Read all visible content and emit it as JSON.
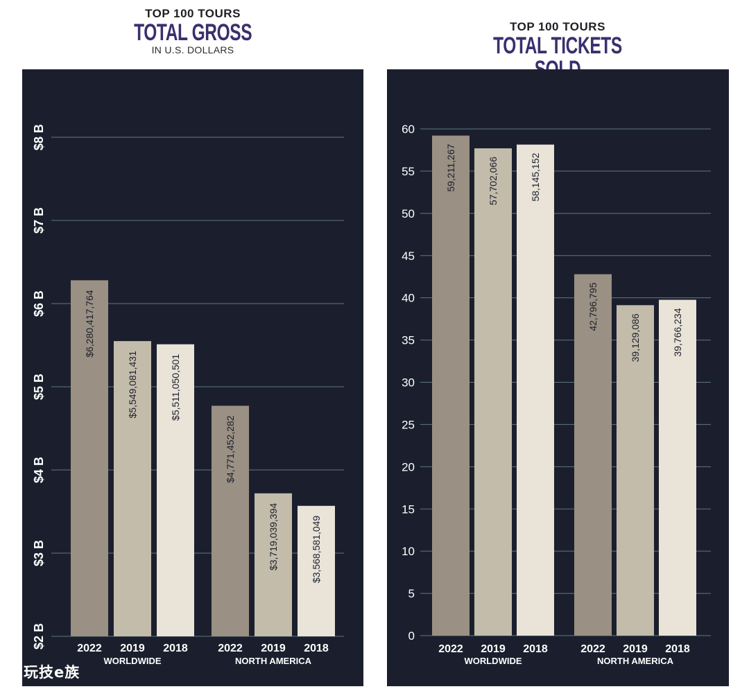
{
  "watermark": "玩技e族",
  "chart_data": [
    {
      "type": "bar",
      "kicker": "TOP 100 TOURS",
      "title": "TOTAL GROSS",
      "subtitle": "IN U.S. DOLLARS",
      "groups": [
        {
          "label": "WORLDWIDE",
          "bars": [
            {
              "year": "2022",
              "value": 6280417764,
              "label": "$6,280,417,764"
            },
            {
              "year": "2019",
              "value": 5549081431,
              "label": "$5,549,081,431"
            },
            {
              "year": "2018",
              "value": 5511050501,
              "label": "$5,511,050,501"
            }
          ]
        },
        {
          "label": "NORTH AMERICA",
          "bars": [
            {
              "year": "2022",
              "value": 4771452282,
              "label": "$4,771,452,282"
            },
            {
              "year": "2019",
              "value": 3719039394,
              "label": "$3,719,039,394"
            },
            {
              "year": "2018",
              "value": 3568581049,
              "label": "$3,568,581,049"
            }
          ]
        }
      ],
      "ylim": [
        2000000000,
        8000000000
      ],
      "y_ticks": [
        {
          "value": 2000000000,
          "label": "$2 B"
        },
        {
          "value": 3000000000,
          "label": "$3 B"
        },
        {
          "value": 4000000000,
          "label": "$4 B"
        },
        {
          "value": 5000000000,
          "label": "$5 B"
        },
        {
          "value": 6000000000,
          "label": "$6 B"
        },
        {
          "value": 7000000000,
          "label": "$7 B"
        },
        {
          "value": 8000000000,
          "label": "$8 B"
        }
      ],
      "grid": true,
      "colors": {
        "2022": "#9a9083",
        "2019": "#c3bcab",
        "2018": "#e9e3d8"
      }
    },
    {
      "type": "bar",
      "kicker": "TOP 100 TOURS",
      "title": "TOTAL TICKETS SOLD",
      "groups": [
        {
          "label": "WORLDWIDE",
          "bars": [
            {
              "year": "2022",
              "value": 59211267,
              "label": "59,211,267"
            },
            {
              "year": "2019",
              "value": 57702066,
              "label": "57,702,066"
            },
            {
              "year": "2018",
              "value": 58145152,
              "label": "58,145,152"
            }
          ]
        },
        {
          "label": "NORTH AMERICA",
          "bars": [
            {
              "year": "2022",
              "value": 42796795,
              "label": "42,796,795"
            },
            {
              "year": "2019",
              "value": 39129086,
              "label": "39,129,086"
            },
            {
              "year": "2018",
              "value": 39766234,
              "label": "39,766,234"
            }
          ]
        }
      ],
      "ylim": [
        0,
        60000000
      ],
      "y_ticks": [
        {
          "value": 0,
          "label": "0"
        },
        {
          "value": 5000000,
          "label": "5"
        },
        {
          "value": 10000000,
          "label": "10"
        },
        {
          "value": 15000000,
          "label": "15"
        },
        {
          "value": 20000000,
          "label": "20"
        },
        {
          "value": 25000000,
          "label": "25"
        },
        {
          "value": 30000000,
          "label": "30"
        },
        {
          "value": 35000000,
          "label": "35"
        },
        {
          "value": 40000000,
          "label": "40"
        },
        {
          "value": 45000000,
          "label": "45"
        },
        {
          "value": 50000000,
          "label": "50"
        },
        {
          "value": 55000000,
          "label": "55"
        },
        {
          "value": 60000000,
          "label": "60"
        }
      ],
      "grid": true,
      "colors": {
        "2022": "#9a9083",
        "2019": "#c3bcab",
        "2018": "#e9e3d8"
      }
    }
  ]
}
